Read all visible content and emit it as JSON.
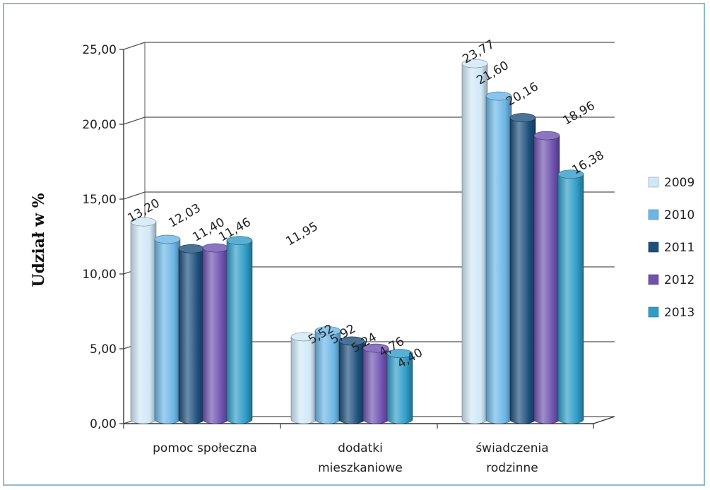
{
  "chart_data": {
    "type": "bar",
    "title": "",
    "xlabel": "",
    "ylabel": "Udział w %",
    "ylim": [
      0,
      25
    ],
    "yticks": [
      "0,00",
      "5,00",
      "10,00",
      "15,00",
      "20,00",
      "25,00"
    ],
    "grid": true,
    "legend_position": "right",
    "categories": [
      [
        "pomoc społeczna"
      ],
      [
        "dodatki",
        "mieszkaniowe"
      ],
      [
        "świadczenia",
        "rodzinne"
      ]
    ],
    "series": [
      {
        "name": "2009",
        "color": "#cfe8f7",
        "values": [
          13.2,
          5.52,
          23.77
        ],
        "labels": [
          "13,20",
          "5,52",
          "23,77"
        ]
      },
      {
        "name": "2010",
        "color": "#6cb6e6",
        "values": [
          12.03,
          5.92,
          21.6
        ],
        "labels": [
          "12,03",
          "5,92",
          "21,60"
        ]
      },
      {
        "name": "2011",
        "color": "#1d4f7c",
        "values": [
          11.4,
          5.24,
          20.16
        ],
        "labels": [
          "11,40",
          "5,24",
          "20,16"
        ]
      },
      {
        "name": "2012",
        "color": "#6f52b0",
        "values": [
          11.46,
          4.76,
          18.96
        ],
        "labels": [
          "11,46",
          "4,76",
          "18,96"
        ]
      },
      {
        "name": "2013",
        "color": "#2f9cc8",
        "values": [
          11.95,
          4.4,
          16.38
        ],
        "labels": [
          "11,95",
          "4,40",
          "16,38"
        ]
      }
    ]
  }
}
